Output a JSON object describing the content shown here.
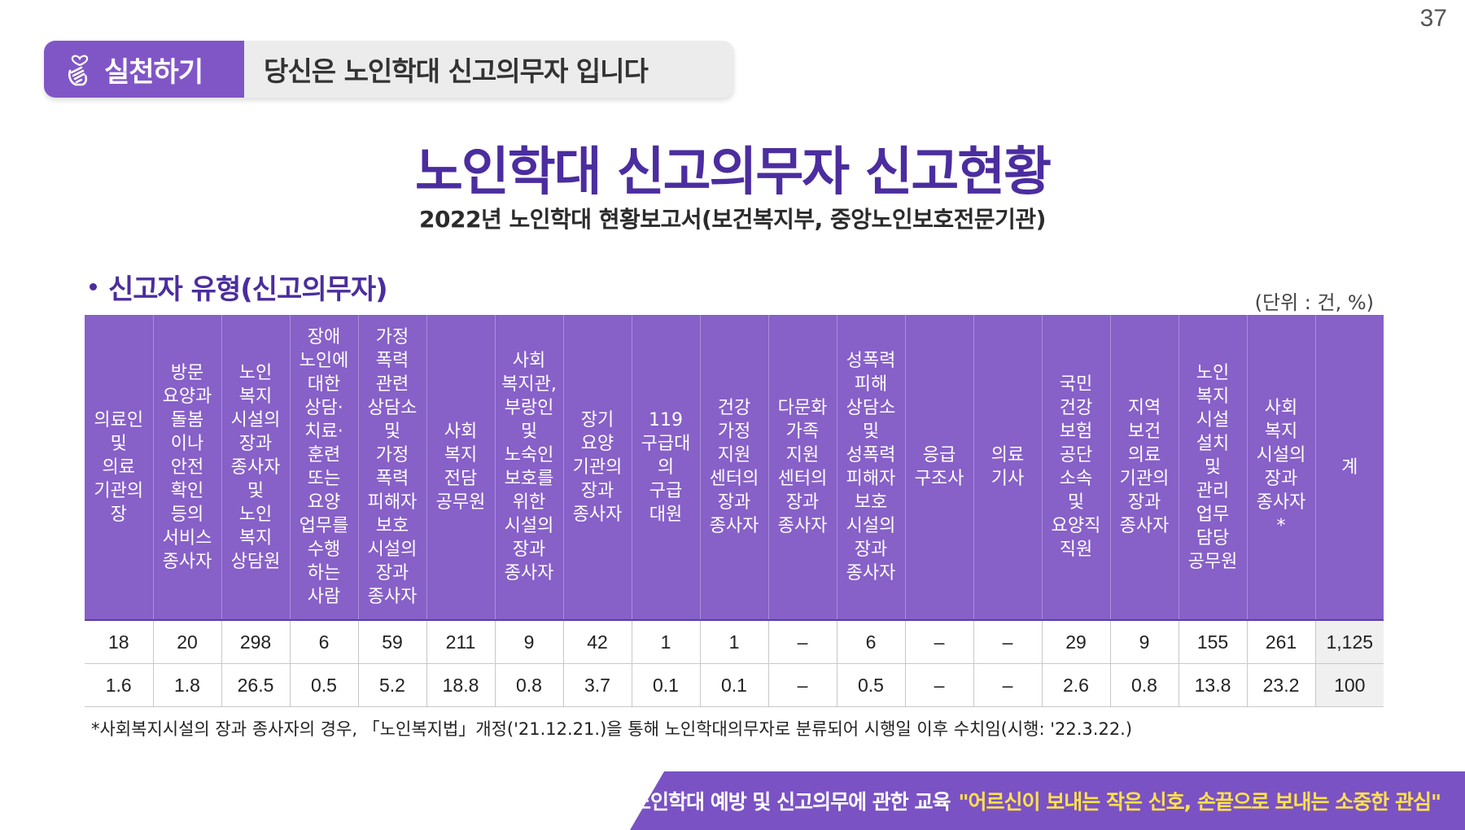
{
  "page_number": "37",
  "header": {
    "badge_label": "실천하기",
    "badge_icon": "heart-hand-icon",
    "text": "당신은 노인학대 신고의무자 입니다"
  },
  "title": "노인학대 신고의무자 신고현황",
  "source": "2022년 노인학대 현황보고서(보건복지부, 중앙노인보호전문기관)",
  "section": {
    "heading": "신고자 유형(신고의무자)",
    "unit": "(단위 : 건, %)"
  },
  "table": {
    "columns": [
      "의료인\n및\n의료\n기관의\n장",
      "방문\n요양과\n돌봄\n이나\n안전\n확인\n등의\n서비스\n종사자",
      "노인\n복지\n시설의\n장과\n종사자\n및\n노인\n복지\n상담원",
      "장애\n노인에\n대한\n상담·\n치료·\n훈련\n또는\n요양\n업무를\n수행\n하는\n사람",
      "가정\n폭력\n관련\n상담소\n및\n가정\n폭력\n피해자\n보호\n시설의\n장과\n종사자",
      "사회\n복지\n전담\n공무원",
      "사회\n복지관,\n부랑인\n및\n노숙인\n보호를\n위한\n시설의\n장과\n종사자",
      "장기\n요양\n기관의\n장과\n종사자",
      "119\n구급대\n의\n구급\n대원",
      "건강\n가정\n지원\n센터의\n장과\n종사자",
      "다문화\n가족\n지원\n센터의\n장과\n종사자",
      "성폭력\n피해\n상담소\n및\n성폭력\n피해자\n보호\n시설의\n장과\n종사자",
      "응급\n구조사",
      "의료\n기사",
      "국민\n건강\n보험\n공단\n소속\n및\n요양직\n직원",
      "지역\n보건\n의료\n기관의\n장과\n종사자",
      "노인\n복지\n시설\n설치\n및\n관리\n업무\n담당\n공무원",
      "사회\n복지\n시설의\n장과\n종사자\n*",
      "계"
    ],
    "counts": [
      "18",
      "20",
      "298",
      "6",
      "59",
      "211",
      "9",
      "42",
      "1",
      "1",
      "–",
      "6",
      "–",
      "–",
      "29",
      "9",
      "155",
      "261",
      "1,125"
    ],
    "percents": [
      "1.6",
      "1.8",
      "26.5",
      "0.5",
      "5.2",
      "18.8",
      "0.8",
      "3.7",
      "0.1",
      "0.1",
      "–",
      "0.5",
      "–",
      "–",
      "2.6",
      "0.8",
      "13.8",
      "23.2",
      "100"
    ]
  },
  "footnote": "*사회복지시설의 장과 종사자의 경우, 「노인복지법」개정('21.12.21.)을 통해 노인학대의무자로 분류되어 시행일 이후 수치임(시행: '22.3.22.)",
  "footer": {
    "main": "노인학대 예방 및 신고의무에 관한 교육",
    "quote": "\"어르신이 보내는 작은 신호, 손끝으로 보내는 소중한 관심\""
  },
  "colors": {
    "accent_purple": "#8056c7",
    "title_purple": "#4b2d9f",
    "footer_quote_yellow": "#ffe14d"
  }
}
